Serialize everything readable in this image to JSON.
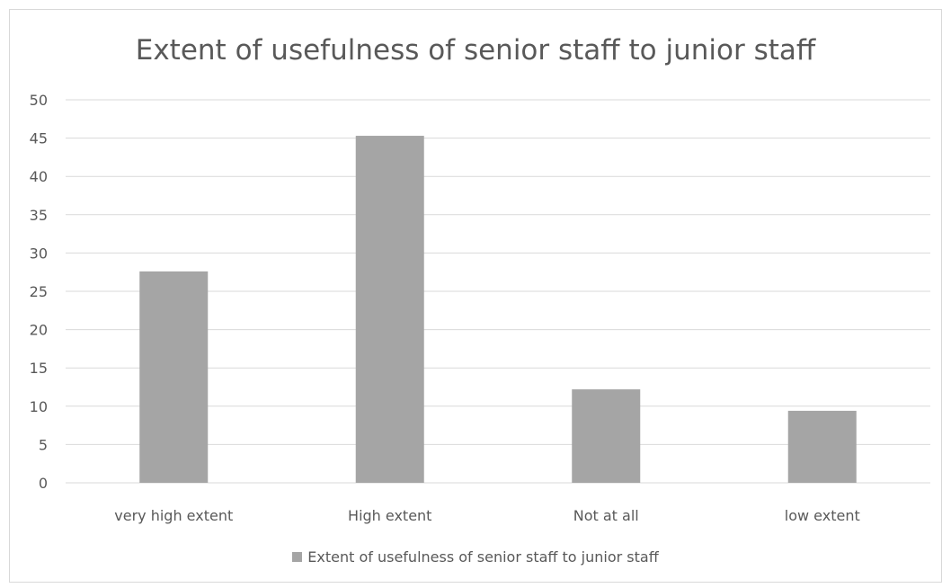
{
  "chart_data": {
    "type": "bar",
    "title": "Extent of usefulness of senior staff to junior staff",
    "categories": [
      "very high extent",
      "High extent",
      "Not at all",
      "low extent"
    ],
    "series": [
      {
        "name": "Extent of usefulness of senior staff to junior staff",
        "values": [
          27.6,
          45.3,
          12.2,
          9.4
        ],
        "color": "#a5a5a5"
      }
    ],
    "y_ticks": [
      "0",
      "5",
      "10",
      "15",
      "20",
      "25",
      "30",
      "35",
      "40",
      "45",
      "50"
    ],
    "ylim": [
      0,
      50
    ],
    "grid": true,
    "legend_position": "bottom",
    "gridline_color": "#d9d9d9",
    "text_color": "#595959"
  }
}
